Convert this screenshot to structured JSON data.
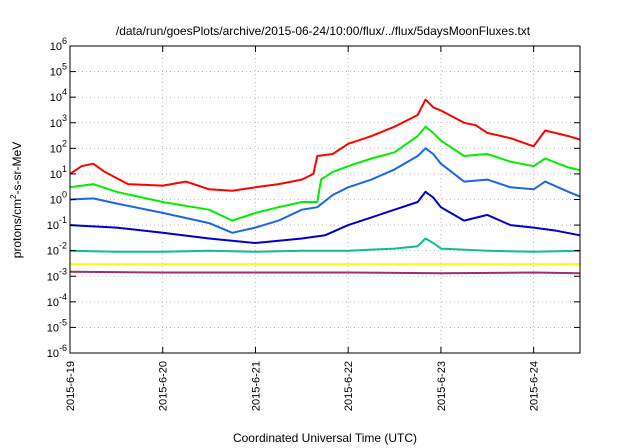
{
  "chart_data": {
    "type": "line",
    "title": "/data/run/goesPlots/archive/2015-06-24/10:00/flux/../flux/5daysMoonFluxes.txt",
    "xlabel": "Coordinated Universal Time (UTC)",
    "ylabel": "protons/cm²-s-sr-MeV",
    "ylabel_parts": {
      "pre": "protons/cm",
      "sup": "2",
      "post": "-s-sr-MeV"
    },
    "y_scale": "log",
    "ylim_exp": [
      -6,
      6
    ],
    "y_tick_exponents": [
      -6,
      -5,
      -4,
      -3,
      -2,
      -1,
      0,
      1,
      2,
      3,
      4,
      5,
      6
    ],
    "y_tick_base": "10",
    "xlim": [
      "2015-06-19T00:00",
      "2015-06-24T12:00"
    ],
    "x_tick_labels": [
      "2015-6-19",
      "2015-6-20",
      "2015-6-21",
      "2015-6-22",
      "2015-6-23",
      "2015-6-24"
    ],
    "grid": true,
    "series": [
      {
        "color": "#ff0000",
        "points": [
          [
            "2015-06-19T00:00",
            10
          ],
          [
            "2015-06-19T03:00",
            20
          ],
          [
            "2015-06-19T06:00",
            25
          ],
          [
            "2015-06-19T09:00",
            12
          ],
          [
            "2015-06-19T15:00",
            4
          ],
          [
            "2015-06-20T00:00",
            3.5
          ],
          [
            "2015-06-20T06:00",
            5
          ],
          [
            "2015-06-20T12:00",
            2.5
          ],
          [
            "2015-06-20T18:00",
            2.2
          ],
          [
            "2015-06-21T00:00",
            3
          ],
          [
            "2015-06-21T06:00",
            4
          ],
          [
            "2015-06-21T12:00",
            6
          ],
          [
            "2015-06-21T15:00",
            10
          ],
          [
            "2015-06-21T16:00",
            50
          ],
          [
            "2015-06-21T20:00",
            60
          ],
          [
            "2015-06-22T00:00",
            150
          ],
          [
            "2015-06-22T06:00",
            300
          ],
          [
            "2015-06-22T12:00",
            700
          ],
          [
            "2015-06-22T18:00",
            2000
          ],
          [
            "2015-06-22T20:00",
            8000
          ],
          [
            "2015-06-22T22:00",
            4000
          ],
          [
            "2015-06-23T00:00",
            3000
          ],
          [
            "2015-06-23T06:00",
            1000
          ],
          [
            "2015-06-23T09:00",
            800
          ],
          [
            "2015-06-23T12:00",
            400
          ],
          [
            "2015-06-23T18:00",
            250
          ],
          [
            "2015-06-24T00:00",
            120
          ],
          [
            "2015-06-24T03:00",
            500
          ],
          [
            "2015-06-24T09:00",
            300
          ],
          [
            "2015-06-24T12:00",
            220
          ]
        ]
      },
      {
        "color": "#00ee00",
        "points": [
          [
            "2015-06-19T00:00",
            3
          ],
          [
            "2015-06-19T06:00",
            4
          ],
          [
            "2015-06-19T12:00",
            2
          ],
          [
            "2015-06-20T00:00",
            0.8
          ],
          [
            "2015-06-20T12:00",
            0.4
          ],
          [
            "2015-06-20T18:00",
            0.15
          ],
          [
            "2015-06-21T00:00",
            0.3
          ],
          [
            "2015-06-21T06:00",
            0.5
          ],
          [
            "2015-06-21T12:00",
            0.8
          ],
          [
            "2015-06-21T16:00",
            0.8
          ],
          [
            "2015-06-21T17:00",
            6
          ],
          [
            "2015-06-21T20:00",
            12
          ],
          [
            "2015-06-22T00:00",
            20
          ],
          [
            "2015-06-22T06:00",
            40
          ],
          [
            "2015-06-22T12:00",
            70
          ],
          [
            "2015-06-22T18:00",
            300
          ],
          [
            "2015-06-22T20:00",
            700
          ],
          [
            "2015-06-22T22:00",
            400
          ],
          [
            "2015-06-23T00:00",
            200
          ],
          [
            "2015-06-23T06:00",
            50
          ],
          [
            "2015-06-23T12:00",
            60
          ],
          [
            "2015-06-23T18:00",
            30
          ],
          [
            "2015-06-24T00:00",
            20
          ],
          [
            "2015-06-24T03:00",
            40
          ],
          [
            "2015-06-24T09:00",
            18
          ],
          [
            "2015-06-24T12:00",
            14
          ]
        ]
      },
      {
        "color": "#1a66e6",
        "points": [
          [
            "2015-06-19T00:00",
            1
          ],
          [
            "2015-06-19T06:00",
            1.1
          ],
          [
            "2015-06-19T12:00",
            0.7
          ],
          [
            "2015-06-20T00:00",
            0.3
          ],
          [
            "2015-06-20T12:00",
            0.12
          ],
          [
            "2015-06-20T18:00",
            0.05
          ],
          [
            "2015-06-21T00:00",
            0.08
          ],
          [
            "2015-06-21T06:00",
            0.15
          ],
          [
            "2015-06-21T12:00",
            0.4
          ],
          [
            "2015-06-21T16:00",
            0.5
          ],
          [
            "2015-06-21T20:00",
            1.5
          ],
          [
            "2015-06-22T00:00",
            3
          ],
          [
            "2015-06-22T06:00",
            6
          ],
          [
            "2015-06-22T12:00",
            15
          ],
          [
            "2015-06-22T18:00",
            50
          ],
          [
            "2015-06-22T20:00",
            100
          ],
          [
            "2015-06-22T22:00",
            60
          ],
          [
            "2015-06-23T00:00",
            25
          ],
          [
            "2015-06-23T06:00",
            5
          ],
          [
            "2015-06-23T12:00",
            6
          ],
          [
            "2015-06-23T18:00",
            3
          ],
          [
            "2015-06-24T00:00",
            2.5
          ],
          [
            "2015-06-24T03:00",
            5
          ],
          [
            "2015-06-24T09:00",
            2
          ],
          [
            "2015-06-24T12:00",
            1.3
          ]
        ]
      },
      {
        "color": "#0000cc",
        "points": [
          [
            "2015-06-19T00:00",
            0.1
          ],
          [
            "2015-06-19T12:00",
            0.08
          ],
          [
            "2015-06-20T00:00",
            0.05
          ],
          [
            "2015-06-20T12:00",
            0.03
          ],
          [
            "2015-06-21T00:00",
            0.02
          ],
          [
            "2015-06-21T12:00",
            0.03
          ],
          [
            "2015-06-21T18:00",
            0.04
          ],
          [
            "2015-06-22T00:00",
            0.1
          ],
          [
            "2015-06-22T06:00",
            0.2
          ],
          [
            "2015-06-22T12:00",
            0.4
          ],
          [
            "2015-06-22T18:00",
            0.8
          ],
          [
            "2015-06-22T20:00",
            2
          ],
          [
            "2015-06-22T22:00",
            1.2
          ],
          [
            "2015-06-23T00:00",
            0.5
          ],
          [
            "2015-06-23T06:00",
            0.15
          ],
          [
            "2015-06-23T12:00",
            0.25
          ],
          [
            "2015-06-23T18:00",
            0.1
          ],
          [
            "2015-06-24T00:00",
            0.08
          ],
          [
            "2015-06-24T06:00",
            0.06
          ],
          [
            "2015-06-24T12:00",
            0.04
          ]
        ]
      },
      {
        "color": "#11bb99",
        "points": [
          [
            "2015-06-19T00:00",
            0.01
          ],
          [
            "2015-06-19T12:00",
            0.009
          ],
          [
            "2015-06-20T00:00",
            0.009
          ],
          [
            "2015-06-20T12:00",
            0.01
          ],
          [
            "2015-06-21T00:00",
            0.009
          ],
          [
            "2015-06-21T12:00",
            0.01
          ],
          [
            "2015-06-22T00:00",
            0.01
          ],
          [
            "2015-06-22T12:00",
            0.012
          ],
          [
            "2015-06-22T18:00",
            0.015
          ],
          [
            "2015-06-22T20:00",
            0.03
          ],
          [
            "2015-06-22T22:00",
            0.02
          ],
          [
            "2015-06-23T00:00",
            0.012
          ],
          [
            "2015-06-23T12:00",
            0.01
          ],
          [
            "2015-06-24T00:00",
            0.009
          ],
          [
            "2015-06-24T12:00",
            0.01
          ]
        ]
      },
      {
        "color": "#ffff00",
        "points": [
          [
            "2015-06-19T00:00",
            0.003
          ],
          [
            "2015-06-20T00:00",
            0.003
          ],
          [
            "2015-06-21T00:00",
            0.003
          ],
          [
            "2015-06-22T00:00",
            0.003
          ],
          [
            "2015-06-23T00:00",
            0.003
          ],
          [
            "2015-06-24T00:00",
            0.003
          ],
          [
            "2015-06-24T12:00",
            0.003
          ]
        ]
      },
      {
        "color": "#993366",
        "points": [
          [
            "2015-06-19T00:00",
            0.0015
          ],
          [
            "2015-06-20T00:00",
            0.0014
          ],
          [
            "2015-06-21T00:00",
            0.0014
          ],
          [
            "2015-06-22T00:00",
            0.0014
          ],
          [
            "2015-06-23T00:00",
            0.0013
          ],
          [
            "2015-06-24T00:00",
            0.0014
          ],
          [
            "2015-06-24T12:00",
            0.0013
          ]
        ]
      }
    ]
  }
}
